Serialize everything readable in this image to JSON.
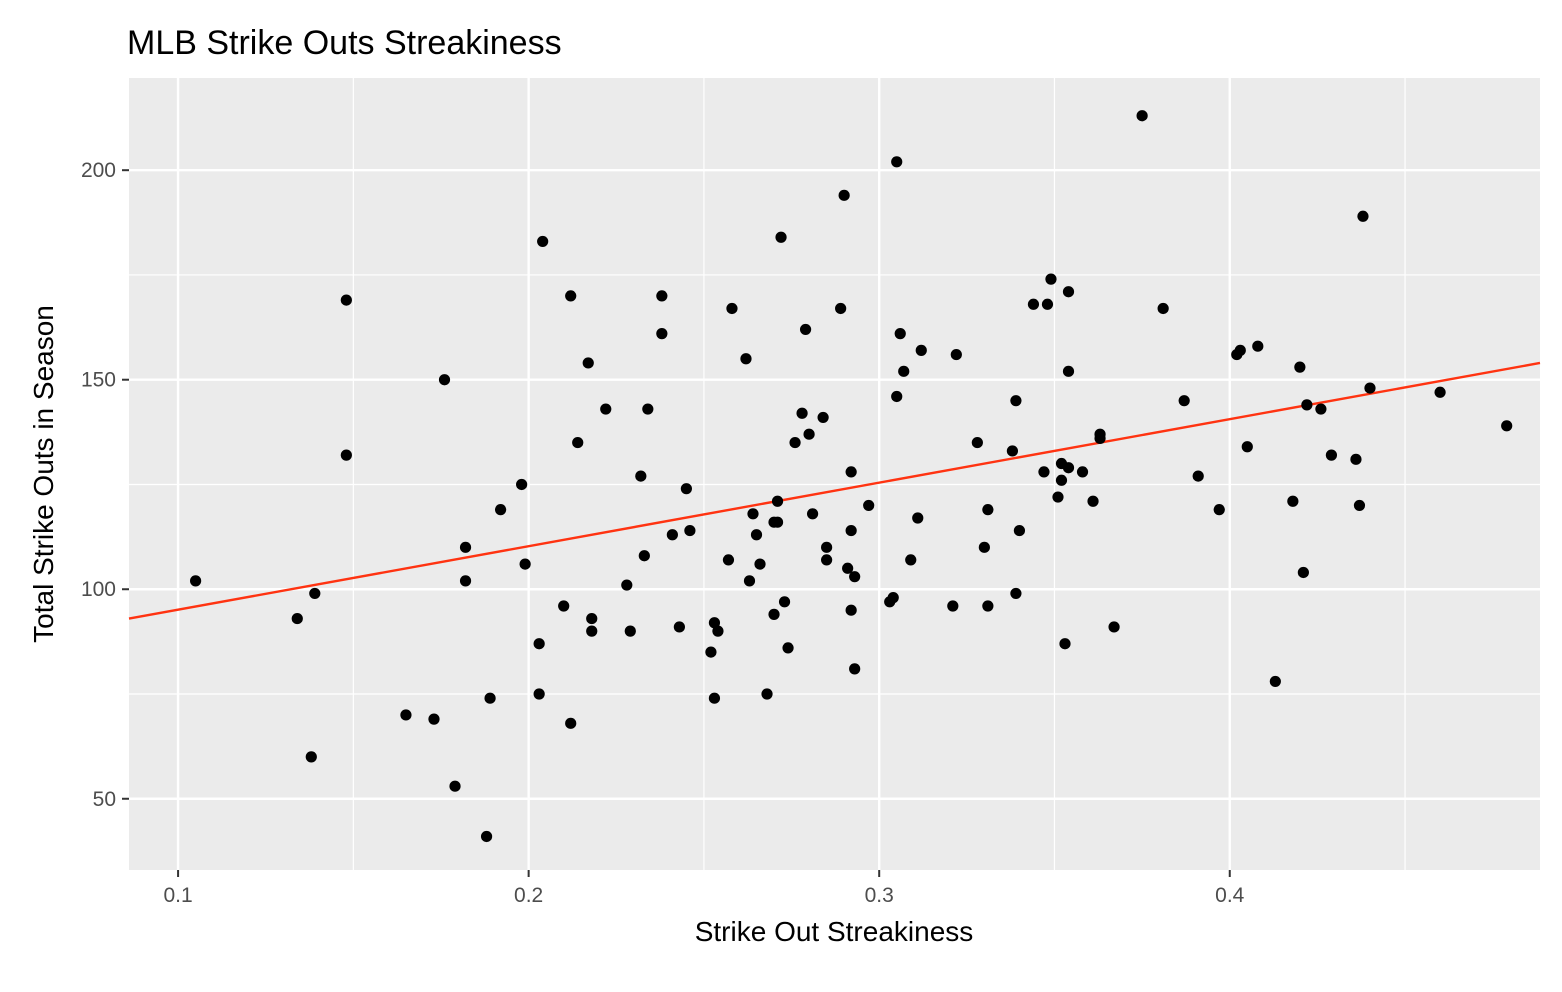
{
  "chart_data": {
    "type": "scatter",
    "title": "MLB Strike Outs Streakiness",
    "xlabel": "Strike Out Streakiness",
    "ylabel": "Total Strike Outs in Season",
    "xlim": [
      0.086,
      0.4885
    ],
    "ylim": [
      33,
      222
    ],
    "x_ticks": [
      0.1,
      0.2,
      0.3,
      0.4
    ],
    "x_tick_labels": [
      "0.1",
      "0.2",
      "0.3",
      "0.4"
    ],
    "y_ticks": [
      50,
      100,
      150,
      200
    ],
    "y_tick_labels": [
      "50",
      "100",
      "150",
      "200"
    ],
    "grid": true,
    "background": "#ebebeb",
    "point_color": "#000000",
    "trend_color": "#ff3311",
    "trend_line": {
      "x": [
        0.086,
        0.4885
      ],
      "y": [
        93,
        154
      ]
    },
    "points": [
      [
        0.105,
        102
      ],
      [
        0.134,
        93
      ],
      [
        0.138,
        60
      ],
      [
        0.139,
        99
      ],
      [
        0.148,
        132
      ],
      [
        0.148,
        169
      ],
      [
        0.165,
        70
      ],
      [
        0.173,
        69
      ],
      [
        0.176,
        150
      ],
      [
        0.179,
        53
      ],
      [
        0.182,
        102
      ],
      [
        0.182,
        110
      ],
      [
        0.188,
        41
      ],
      [
        0.189,
        74
      ],
      [
        0.192,
        119
      ],
      [
        0.198,
        125
      ],
      [
        0.199,
        106
      ],
      [
        0.203,
        75
      ],
      [
        0.203,
        87
      ],
      [
        0.204,
        183
      ],
      [
        0.21,
        96
      ],
      [
        0.212,
        68
      ],
      [
        0.212,
        170
      ],
      [
        0.214,
        135
      ],
      [
        0.217,
        154
      ],
      [
        0.218,
        90
      ],
      [
        0.218,
        93
      ],
      [
        0.222,
        143
      ],
      [
        0.228,
        101
      ],
      [
        0.229,
        90
      ],
      [
        0.232,
        127
      ],
      [
        0.233,
        108
      ],
      [
        0.234,
        143
      ],
      [
        0.238,
        161
      ],
      [
        0.238,
        170
      ],
      [
        0.241,
        113
      ],
      [
        0.243,
        91
      ],
      [
        0.245,
        124
      ],
      [
        0.246,
        114
      ],
      [
        0.252,
        85
      ],
      [
        0.253,
        74
      ],
      [
        0.253,
        92
      ],
      [
        0.254,
        90
      ],
      [
        0.257,
        107
      ],
      [
        0.258,
        167
      ],
      [
        0.262,
        155
      ],
      [
        0.263,
        102
      ],
      [
        0.264,
        118
      ],
      [
        0.265,
        113
      ],
      [
        0.266,
        106
      ],
      [
        0.268,
        75
      ],
      [
        0.27,
        116
      ],
      [
        0.27,
        94
      ],
      [
        0.271,
        116
      ],
      [
        0.271,
        121
      ],
      [
        0.272,
        184
      ],
      [
        0.273,
        97
      ],
      [
        0.274,
        86
      ],
      [
        0.276,
        135
      ],
      [
        0.278,
        142
      ],
      [
        0.279,
        162
      ],
      [
        0.28,
        137
      ],
      [
        0.281,
        118
      ],
      [
        0.284,
        141
      ],
      [
        0.285,
        107
      ],
      [
        0.285,
        110
      ],
      [
        0.289,
        167
      ],
      [
        0.29,
        194
      ],
      [
        0.291,
        105
      ],
      [
        0.292,
        128
      ],
      [
        0.292,
        114
      ],
      [
        0.292,
        95
      ],
      [
        0.293,
        103
      ],
      [
        0.293,
        81
      ],
      [
        0.297,
        120
      ],
      [
        0.303,
        97
      ],
      [
        0.304,
        98
      ],
      [
        0.305,
        202
      ],
      [
        0.305,
        146
      ],
      [
        0.306,
        161
      ],
      [
        0.307,
        152
      ],
      [
        0.309,
        107
      ],
      [
        0.311,
        117
      ],
      [
        0.312,
        157
      ],
      [
        0.321,
        96
      ],
      [
        0.322,
        156
      ],
      [
        0.328,
        135
      ],
      [
        0.33,
        110
      ],
      [
        0.331,
        96
      ],
      [
        0.331,
        119
      ],
      [
        0.338,
        133
      ],
      [
        0.339,
        145
      ],
      [
        0.339,
        99
      ],
      [
        0.34,
        114
      ],
      [
        0.344,
        168
      ],
      [
        0.347,
        128
      ],
      [
        0.348,
        168
      ],
      [
        0.349,
        174
      ],
      [
        0.351,
        122
      ],
      [
        0.352,
        126
      ],
      [
        0.352,
        130
      ],
      [
        0.353,
        87
      ],
      [
        0.354,
        129
      ],
      [
        0.354,
        152
      ],
      [
        0.354,
        171
      ],
      [
        0.358,
        128
      ],
      [
        0.361,
        121
      ],
      [
        0.363,
        136
      ],
      [
        0.363,
        137
      ],
      [
        0.367,
        91
      ],
      [
        0.375,
        213
      ],
      [
        0.381,
        167
      ],
      [
        0.387,
        145
      ],
      [
        0.391,
        127
      ],
      [
        0.397,
        119
      ],
      [
        0.402,
        156
      ],
      [
        0.403,
        157
      ],
      [
        0.405,
        134
      ],
      [
        0.408,
        158
      ],
      [
        0.413,
        78
      ],
      [
        0.418,
        121
      ],
      [
        0.42,
        153
      ],
      [
        0.421,
        104
      ],
      [
        0.422,
        144
      ],
      [
        0.426,
        143
      ],
      [
        0.429,
        132
      ],
      [
        0.436,
        131
      ],
      [
        0.437,
        120
      ],
      [
        0.438,
        189
      ],
      [
        0.44,
        148
      ],
      [
        0.46,
        147
      ],
      [
        0.479,
        139
      ]
    ]
  }
}
